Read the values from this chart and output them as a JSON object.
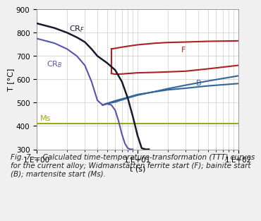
{
  "title": "",
  "xlabel": "t (s)",
  "ylabel": "T [°C]",
  "ylim": [
    300,
    900
  ],
  "yticks": [
    300,
    400,
    500,
    600,
    700,
    800,
    900
  ],
  "xtick_positions": [
    1,
    10,
    100
  ],
  "background_color": "#f0f0f0",
  "plot_bg_color": "#ffffff",
  "grid_color": "#cccccc",
  "Ms_temp": 410,
  "Ms_color": "#9aaa10",
  "CRF_color": "#1a1a2e",
  "CRB_color": "#5555aa",
  "F_color": "#aa2222",
  "B_color": "#336699",
  "caption": "Fig. 7 — Calculated time-temperature-transformation (TTT) curves\nfor the current alloy; Widmanstätten ferrite start (F); bainite start\n(B); martensite start (Ms).",
  "caption_fontsize": 7.5
}
